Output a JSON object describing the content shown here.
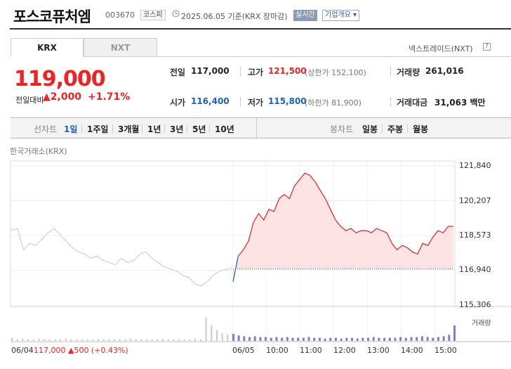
{
  "header": {
    "title": "포스코퓨처엠",
    "code": "003670",
    "market": "코스피",
    "date": "2025.06.05",
    "basis": "기준(KRX 장마감)",
    "live": "실시간",
    "corp": "기업개요 ▾"
  },
  "tabs": {
    "krx": "KRX",
    "nxt": "NXT",
    "nxt_link": "넥스트레이드(NXT)",
    "help": "?"
  },
  "quote": {
    "price": "119,000",
    "cmp_label": "전일대비",
    "cmp_value": "▲2,000",
    "cmp_pct": "+1.71%",
    "prev_label": "전일",
    "prev": "117,000",
    "high_label": "고가",
    "high": "121,500",
    "high_limit": "(상한가 152,100)",
    "volume_label": "거래량",
    "volume": "261,016",
    "open_label": "시가",
    "open": "116,400",
    "low_label": "저가",
    "low": "115,800",
    "low_limit": "(하한가 81,900)",
    "amount_label": "거래대금",
    "amount": "31,063 백만"
  },
  "toolbar": {
    "line_label": "선차트",
    "periods": [
      "1일",
      "1주일",
      "3개월",
      "1년",
      "3년",
      "5년",
      "10년"
    ],
    "candle_label": "봉차트",
    "candles": [
      "일봉",
      "주봉",
      "월봉"
    ]
  },
  "chart_label": "한국거래소(KRX)",
  "volume_label": "거래량",
  "prev_day_summary": {
    "date": "06/04",
    "price": "117,000",
    "change": "▲500 (+0.43%)"
  },
  "colors": {
    "up": "#e22222",
    "down": "#1a5fc8",
    "fill": "#fde3e3",
    "prev_line": "#c8c8c8"
  },
  "chart_data": {
    "type": "line",
    "y_ticks": [
      "121,840",
      "120,207",
      "118,573",
      "116,940",
      "115,306"
    ],
    "ylim": [
      115306,
      121840
    ],
    "x_ticks": [
      "06/04",
      "06/05",
      "10:00",
      "11:00",
      "12:00",
      "13:00",
      "14:00",
      "15:00"
    ],
    "baseline": 117000,
    "series": [
      {
        "name": "06/04",
        "values": [
          118800,
          118900,
          117900,
          118200,
          118100,
          118400,
          118700,
          118900,
          118600,
          118300,
          118000,
          117800,
          117700,
          117500,
          117600,
          117400,
          117300,
          117200,
          117500,
          117300,
          117400,
          117700,
          117800,
          117500,
          117300,
          117100,
          117000,
          116900,
          116700,
          116600,
          116300,
          116200,
          116400,
          116700,
          116900,
          116960,
          117050
        ]
      },
      {
        "name": "06/05",
        "values": [
          116400,
          117600,
          117900,
          118300,
          119200,
          119600,
          119300,
          119800,
          119700,
          120300,
          120500,
          120300,
          120900,
          121200,
          121500,
          121400,
          121100,
          120700,
          120300,
          119800,
          119300,
          119000,
          118800,
          118900,
          118700,
          118800,
          118800,
          118700,
          118900,
          118800,
          118700,
          118200,
          117900,
          118100,
          118000,
          117800,
          117700,
          118200,
          118100,
          118500,
          118800,
          118700,
          119000,
          119000
        ]
      }
    ],
    "volume": [
      4,
      2,
      3,
      2,
      2,
      3,
      2,
      2,
      2,
      2,
      3,
      2,
      2,
      2,
      2,
      2,
      2,
      2,
      2,
      2,
      2,
      2,
      3,
      2,
      2,
      2,
      2,
      2,
      3,
      2,
      2,
      2,
      2,
      2,
      3,
      2,
      30,
      20,
      14,
      10,
      8,
      9,
      7,
      6,
      5,
      6,
      5,
      5,
      4,
      5,
      4,
      5,
      4,
      4,
      4,
      5,
      4,
      4,
      3,
      4,
      4,
      3,
      4,
      4,
      3,
      4,
      4,
      5,
      4,
      4,
      4,
      4,
      5,
      4,
      5,
      5,
      6,
      5,
      4,
      5,
      6,
      8,
      20
    ]
  }
}
